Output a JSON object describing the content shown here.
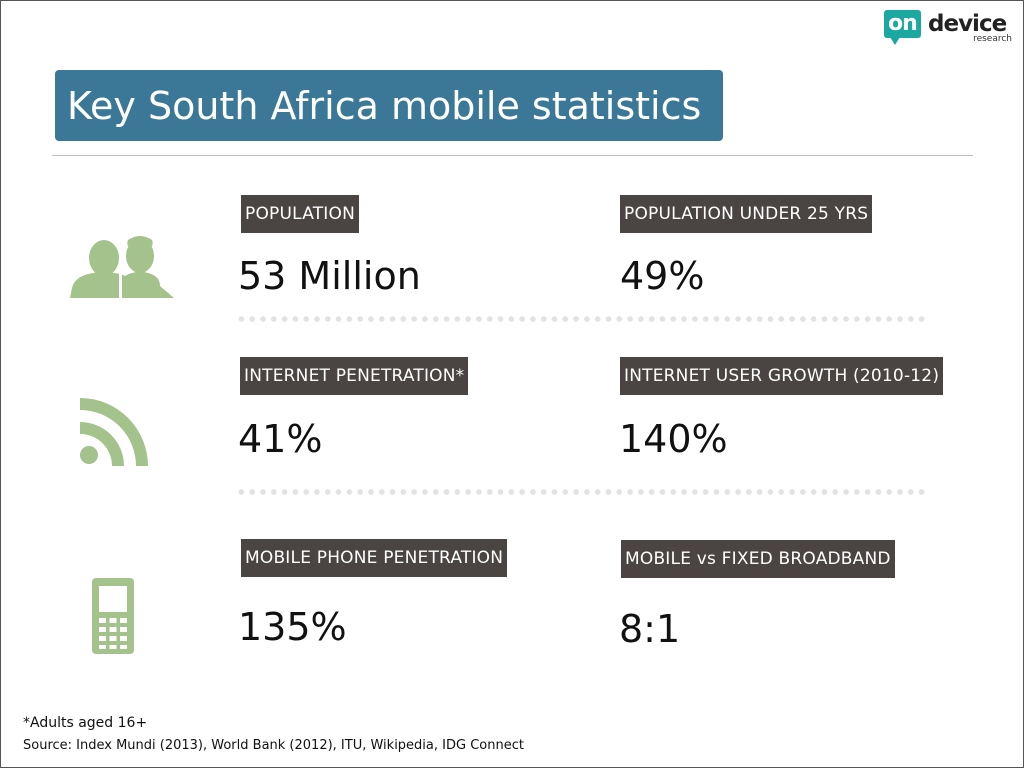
{
  "logo": {
    "on": "on",
    "device": "device",
    "research": "research"
  },
  "title": "Key South Africa mobile statistics",
  "stats": [
    {
      "label": "POPULATION",
      "value": "53 Million"
    },
    {
      "label": "POPULATION UNDER 25 YRS",
      "value": "49%"
    },
    {
      "label": "INTERNET PENETRATION*",
      "value": "41%"
    },
    {
      "label": "INTERNET USER GROWTH (2010-12)",
      "value": "140%"
    },
    {
      "label": "MOBILE PHONE PENETRATION",
      "value": "135%"
    },
    {
      "label": "MOBILE vs FIXED BROADBAND",
      "value": "8:1"
    }
  ],
  "icons": [
    "people-icon",
    "rss-feed-icon",
    "mobile-phone-icon"
  ],
  "colors": {
    "icon": "#a4c38c",
    "title_banner": "#3b7898",
    "label_bg": "#4a4542",
    "logo_accent": "#1ba8a0"
  },
  "footnote": "*Adults aged 16+",
  "source": "Source: Index Mundi (2013), World Bank (2012), ITU, Wikipedia, IDG Connect"
}
